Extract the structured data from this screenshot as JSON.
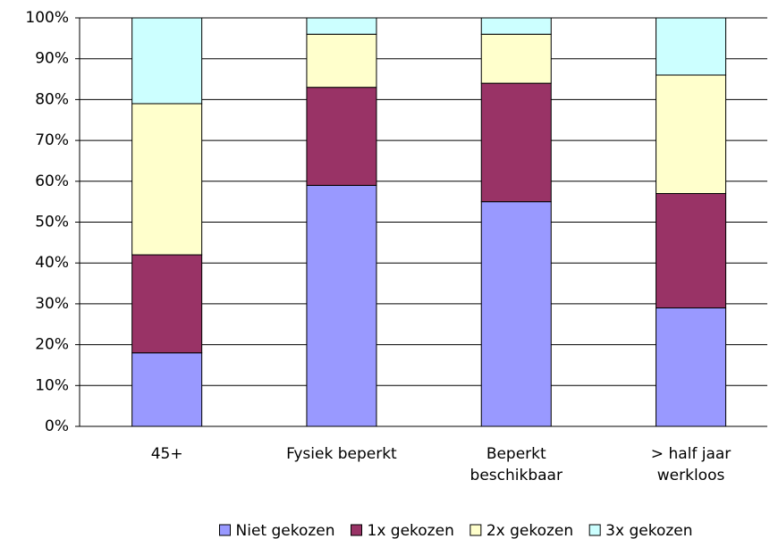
{
  "chart_data": {
    "type": "stacked_bar_percent",
    "categories": [
      "45+",
      "Fysiek beperkt",
      "Beperkt\nbeschikbaar",
      "> half jaar\nwerkloos"
    ],
    "series": [
      {
        "name": "Niet gekozen",
        "color": "#9999ff",
        "values": [
          18,
          59,
          55,
          29
        ]
      },
      {
        "name": "1x gekozen",
        "color": "#993366",
        "values": [
          24,
          24,
          29,
          28
        ]
      },
      {
        "name": "2x gekozen",
        "color": "#ffffcc",
        "values": [
          37,
          13,
          12,
          29
        ]
      },
      {
        "name": "3x gekozen",
        "color": "#ccffff",
        "values": [
          21,
          4,
          4,
          14
        ]
      }
    ],
    "ylim": [
      0,
      100
    ],
    "yticks": [
      {
        "value": 0,
        "label": "0%"
      },
      {
        "value": 10,
        "label": "10%"
      },
      {
        "value": 20,
        "label": "20%"
      },
      {
        "value": 30,
        "label": "30%"
      },
      {
        "value": 40,
        "label": "40%"
      },
      {
        "value": 50,
        "label": "50%"
      },
      {
        "value": 60,
        "label": "60%"
      },
      {
        "value": 70,
        "label": "70%"
      },
      {
        "value": 80,
        "label": "80%"
      },
      {
        "value": 90,
        "label": "90%"
      },
      {
        "value": 100,
        "label": "100%"
      }
    ],
    "grid": true,
    "legend": "bottom"
  }
}
